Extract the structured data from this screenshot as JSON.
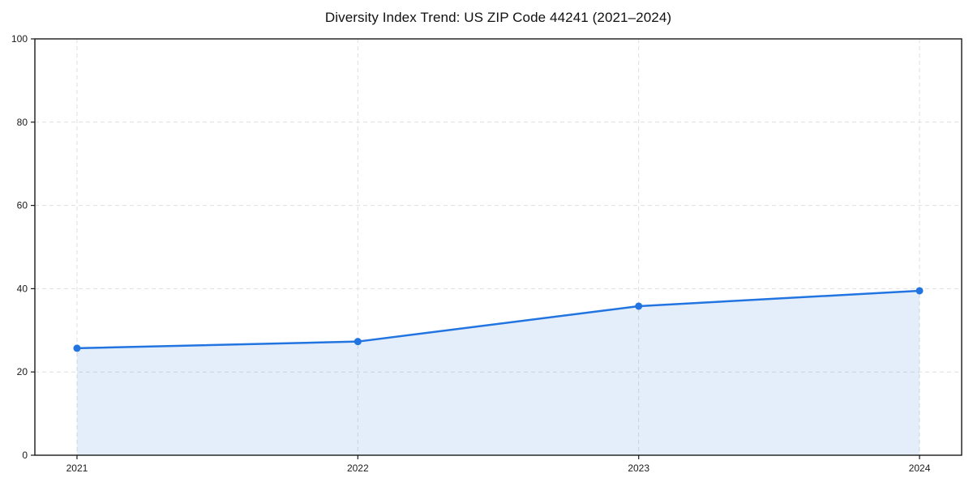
{
  "chart_data": {
    "type": "area",
    "title": "Diversity Index Trend: US ZIP Code 44241 (2021–2024)",
    "categories": [
      "2021",
      "2022",
      "2023",
      "2024"
    ],
    "series": [
      {
        "name": "Diversity Index",
        "values": [
          25.7,
          27.3,
          35.8,
          39.5
        ]
      }
    ],
    "xlabel": "",
    "ylabel": "",
    "ylim": [
      0,
      100
    ],
    "yticks": [
      0,
      20,
      40,
      60,
      80,
      100
    ],
    "grid": true,
    "grid_style": "dashed",
    "legend": false,
    "marker": "circle",
    "colors": {
      "line": "#2274e0",
      "marker": "#2274e0",
      "fill": "#2274e0",
      "fill_opacity": 0.12,
      "grid": "#dedede",
      "spine": "#1a1a1a",
      "text": "#1a1a1a",
      "title": "#111111",
      "background": "#ffffff"
    }
  }
}
